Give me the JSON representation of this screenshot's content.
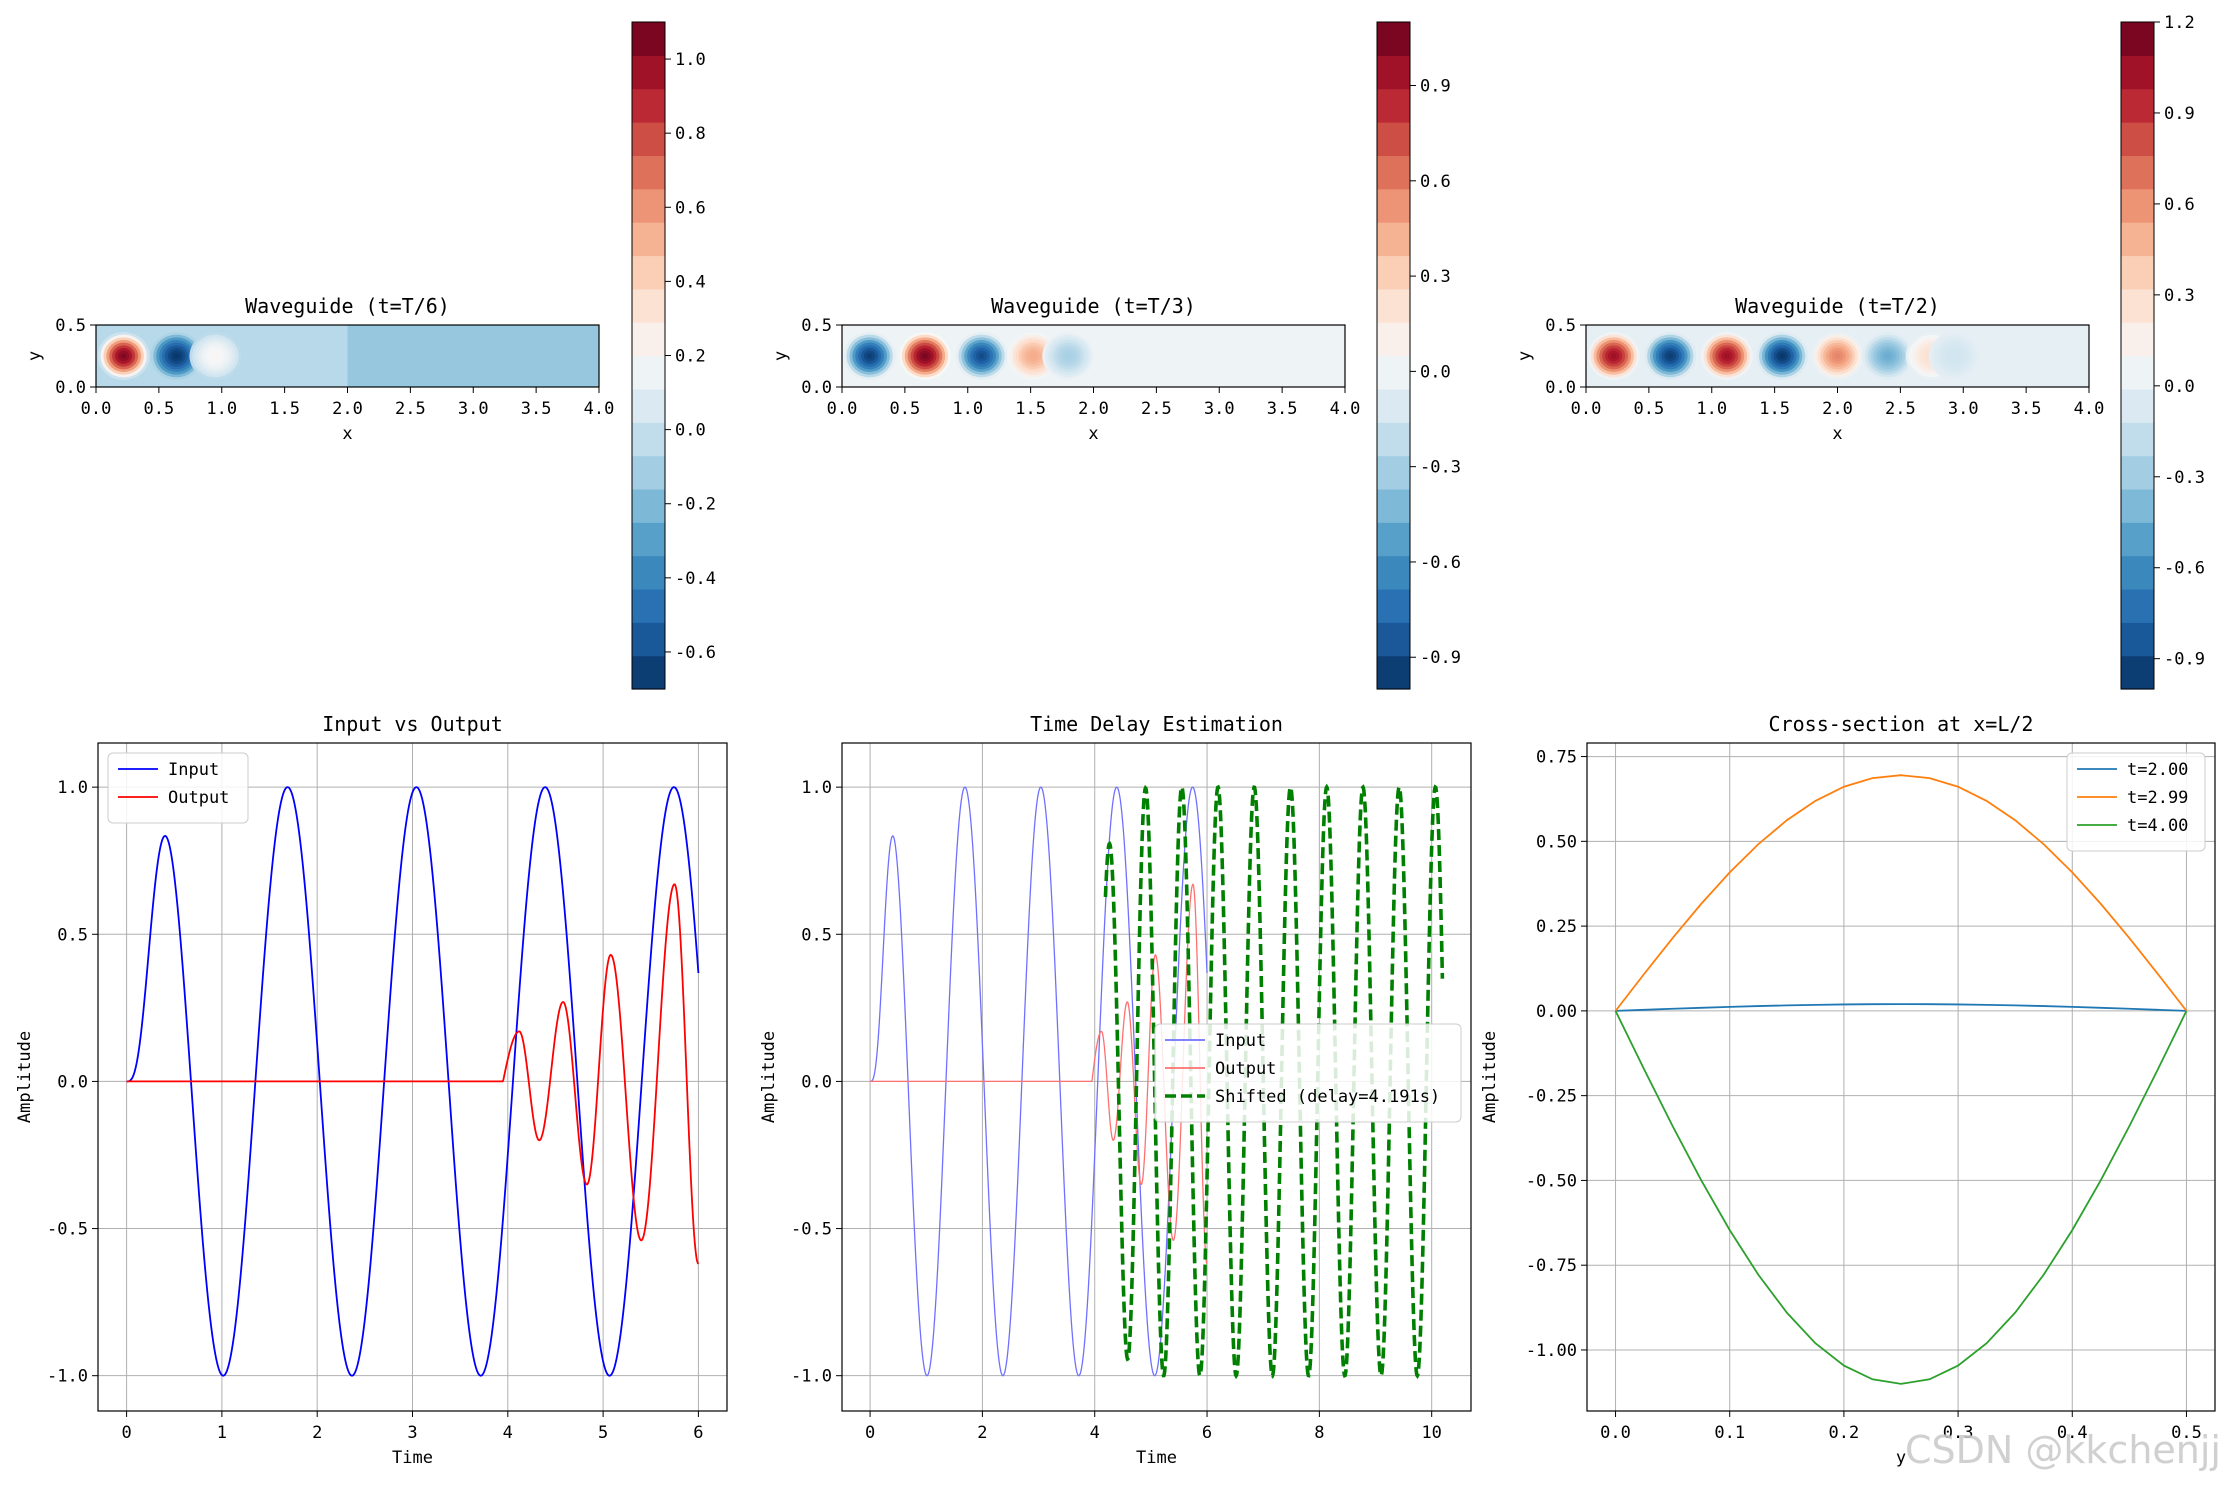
{
  "figure": {
    "watermark": "CSDN @kkchenjj"
  },
  "chart_data": [
    {
      "type": "heatmap",
      "id": "wg1",
      "title": "Waveguide (t=T/6)",
      "xlabel": "x",
      "ylabel": "y",
      "xlim": [
        0,
        4
      ],
      "ylim": [
        0,
        0.5
      ],
      "xticks": [
        "0.0",
        "0.5",
        "1.0",
        "1.5",
        "2.0",
        "2.5",
        "3.0",
        "3.5",
        "4.0"
      ],
      "yticks": [
        "0.0",
        "0.5"
      ],
      "blobs": [
        {
          "x": 0.22,
          "y": 0.25,
          "v": 1.05
        },
        {
          "x": 0.64,
          "y": 0.25,
          "v": -0.68
        },
        {
          "x": 0.95,
          "y": 0.25,
          "v": 0.22
        }
      ],
      "background": [
        {
          "from": 0,
          "to": 2.0,
          "v": -0.05
        },
        {
          "from": 2.0,
          "to": 4.0,
          "v": -0.15
        }
      ],
      "colorbar": {
        "min": -0.7,
        "max": 1.1,
        "ticks": [
          "-0.6",
          "-0.4",
          "-0.2",
          "0.0",
          "0.2",
          "0.4",
          "0.6",
          "0.8",
          "1.0"
        ],
        "tick_values": [
          -0.6,
          -0.4,
          -0.2,
          0.0,
          0.2,
          0.4,
          0.6,
          0.8,
          1.0
        ]
      }
    },
    {
      "type": "heatmap",
      "id": "wg2",
      "title": "Waveguide (t=T/3)",
      "xlabel": "x",
      "ylabel": "y",
      "xlim": [
        0,
        4
      ],
      "ylim": [
        0,
        0.5
      ],
      "xticks": [
        "0.0",
        "0.5",
        "1.0",
        "1.5",
        "2.0",
        "2.5",
        "3.0",
        "3.5",
        "4.0"
      ],
      "yticks": [
        "0.0",
        "0.5"
      ],
      "blobs": [
        {
          "x": 0.22,
          "y": 0.25,
          "v": -0.95
        },
        {
          "x": 0.66,
          "y": 0.25,
          "v": 1.05
        },
        {
          "x": 1.11,
          "y": 0.25,
          "v": -0.9
        },
        {
          "x": 1.52,
          "y": 0.25,
          "v": 0.45
        },
        {
          "x": 1.8,
          "y": 0.25,
          "v": -0.3
        }
      ],
      "background": [
        {
          "from": 0,
          "to": 4.0,
          "v": 0.0
        }
      ],
      "colorbar": {
        "min": -1.0,
        "max": 1.1,
        "ticks": [
          "-0.9",
          "-0.6",
          "-0.3",
          "0.0",
          "0.3",
          "0.6",
          "0.9"
        ],
        "tick_values": [
          -0.9,
          -0.6,
          -0.3,
          0.0,
          0.3,
          0.6,
          0.9
        ]
      }
    },
    {
      "type": "heatmap",
      "id": "wg3",
      "title": "Waveguide (t=T/2)",
      "xlabel": "x",
      "ylabel": "y",
      "xlim": [
        0,
        4
      ],
      "ylim": [
        0,
        0.5
      ],
      "xticks": [
        "0.0",
        "0.5",
        "1.0",
        "1.5",
        "2.0",
        "2.5",
        "3.0",
        "3.5",
        "4.0"
      ],
      "yticks": [
        "0.0",
        "0.5"
      ],
      "blobs": [
        {
          "x": 0.22,
          "y": 0.25,
          "v": 1.05
        },
        {
          "x": 0.67,
          "y": 0.25,
          "v": -0.95
        },
        {
          "x": 1.12,
          "y": 0.25,
          "v": 1.05
        },
        {
          "x": 1.56,
          "y": 0.25,
          "v": -0.98
        },
        {
          "x": 2.0,
          "y": 0.25,
          "v": 0.65
        },
        {
          "x": 2.4,
          "y": 0.25,
          "v": -0.45
        },
        {
          "x": 2.75,
          "y": 0.25,
          "v": 0.3
        },
        {
          "x": 2.93,
          "y": 0.25,
          "v": -0.12
        }
      ],
      "background": [
        {
          "from": 0,
          "to": 4.0,
          "v": 0.0
        }
      ],
      "colorbar": {
        "min": -1.0,
        "max": 1.2,
        "ticks": [
          "-0.9",
          "-0.6",
          "-0.3",
          "0.0",
          "0.3",
          "0.6",
          "0.9",
          "1.2"
        ],
        "tick_values": [
          -0.9,
          -0.6,
          -0.3,
          0.0,
          0.3,
          0.6,
          0.9,
          1.2
        ]
      }
    },
    {
      "type": "line",
      "id": "io",
      "title": "Input vs Output",
      "xlabel": "Time",
      "ylabel": "Amplitude",
      "xlim": [
        -0.3,
        6.3
      ],
      "ylim": [
        -1.12,
        1.15
      ],
      "xticks": [
        "0",
        "1",
        "2",
        "3",
        "4",
        "5",
        "6"
      ],
      "xtick_values": [
        0,
        1,
        2,
        3,
        4,
        5,
        6
      ],
      "yticks": [
        "-1.0",
        "-0.5",
        "0.0",
        "0.5",
        "1.0"
      ],
      "ytick_values": [
        -1.0,
        -0.5,
        0.0,
        0.5,
        1.0
      ],
      "legend_position": "upper-left",
      "series": [
        {
          "name": "Input",
          "color": "#0000ff",
          "model": "input",
          "t_start": 0,
          "t_end": 6,
          "freq": 0.74
        },
        {
          "name": "Output",
          "color": "#ff0000",
          "model": "output",
          "t_start": 0,
          "t_end": 6,
          "points": [
            [
              0,
              0
            ],
            [
              3.9,
              0
            ],
            [
              4.0,
              0.0
            ],
            [
              4.12,
              0.17
            ],
            [
              4.33,
              -0.2
            ],
            [
              4.58,
              0.27
            ],
            [
              4.83,
              -0.35
            ],
            [
              5.08,
              0.43
            ],
            [
              5.4,
              -0.54
            ],
            [
              5.75,
              0.67
            ],
            [
              6.0,
              -0.62
            ]
          ]
        }
      ]
    },
    {
      "type": "line",
      "id": "delay",
      "title": "Time Delay Estimation",
      "xlabel": "Time",
      "ylabel": "Amplitude",
      "xlim": [
        -0.5,
        10.7
      ],
      "ylim": [
        -1.12,
        1.15
      ],
      "xticks": [
        "0",
        "2",
        "4",
        "6",
        "8",
        "10"
      ],
      "xtick_values": [
        0,
        2,
        4,
        6,
        8,
        10
      ],
      "yticks": [
        "-1.0",
        "-0.5",
        "0.0",
        "0.5",
        "1.0"
      ],
      "ytick_values": [
        -1.0,
        -0.5,
        0.0,
        0.5,
        1.0
      ],
      "legend_position": "center-right",
      "delay": 4.191,
      "series": [
        {
          "name": "Input",
          "color": "#7070ff",
          "model": "input",
          "t_start": 0,
          "t_end": 6,
          "freq": 0.74,
          "style": "thin"
        },
        {
          "name": "Output",
          "color": "#ff7070",
          "model": "output",
          "t_start": 0,
          "t_end": 6,
          "style": "thin"
        },
        {
          "name": "Shifted (delay=4.191s)",
          "color": "#008000",
          "model": "shifted",
          "t_start": 4.191,
          "t_end": 10.191,
          "style": "dashed"
        }
      ]
    },
    {
      "type": "line",
      "id": "cs",
      "title": "Cross-section at x=L/2",
      "xlabel": "y",
      "ylabel": "Amplitude",
      "xlim": [
        -0.025,
        0.525
      ],
      "ylim": [
        -1.18,
        0.79
      ],
      "xticks": [
        "0.0",
        "0.1",
        "0.2",
        "0.3",
        "0.4",
        "0.5"
      ],
      "xtick_values": [
        0,
        0.1,
        0.2,
        0.3,
        0.4,
        0.5
      ],
      "yticks": [
        "-1.00",
        "-0.75",
        "-0.50",
        "-0.25",
        "0.00",
        "0.25",
        "0.50",
        "0.75"
      ],
      "ytick_values": [
        -1.0,
        -0.75,
        -0.5,
        -0.25,
        0.0,
        0.25,
        0.5,
        0.75
      ],
      "legend_position": "upper-right",
      "series": [
        {
          "name": "t=2.00",
          "color": "#1f77b4",
          "amplitude": 0.02
        },
        {
          "name": "t=2.99",
          "color": "#ff7f0e",
          "amplitude": 0.695
        },
        {
          "name": "t=4.00",
          "color": "#2ca02c",
          "amplitude": -1.1
        }
      ]
    }
  ]
}
